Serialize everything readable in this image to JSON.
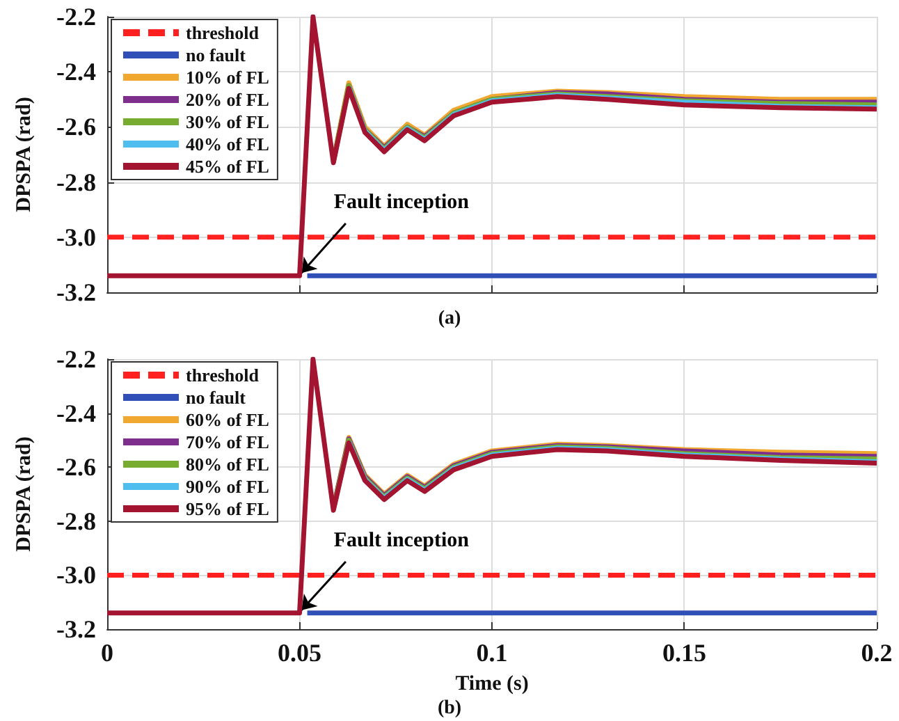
{
  "chart_data": [
    {
      "type": "line",
      "ylabel": "DPSPA (rad)",
      "annotations": [
        {
          "text": "Fault inception",
          "x": 0.05,
          "y": -3.14
        },
        "(a)"
      ],
      "xlim": [
        0,
        0.2
      ],
      "xticks": [
        0,
        0.05,
        0.1,
        0.15,
        0.2
      ],
      "ylim": [
        -3.2,
        -2.2
      ],
      "yticks": [
        -3.2,
        {
          "value": -3,
          "label": "-3.0"
        },
        -2.8,
        -2.6,
        -2.4,
        -2.2
      ],
      "grid": true,
      "legend": "top left",
      "marker": "none",
      "tick_labels": "y",
      "x": [
        0,
        0.05,
        0.0535,
        0.0588,
        0.0628,
        0.067,
        0.072,
        0.078,
        0.0825,
        0.09,
        0.1,
        0.117,
        0.13,
        0.15,
        0.175,
        0.2
      ],
      "series": [
        {
          "name": "threshold",
          "color": "#ff2020",
          "line_style": "dashed",
          "x": [
            0,
            0.2
          ],
          "values": [
            -3,
            -3
          ]
        },
        {
          "name": "no fault",
          "color": "#3050b8",
          "x": [
            0.052,
            0.2
          ],
          "values": [
            -3.14,
            -3.14
          ]
        },
        {
          "name": "10% of FL",
          "color": "#f0a830",
          "values": [
            null,
            null,
            null,
            -2.72,
            -2.44,
            -2.6,
            -2.67,
            -2.59,
            -2.63,
            -2.54,
            -2.49,
            -2.47,
            -2.475,
            -2.49,
            -2.5,
            -2.5
          ]
        },
        {
          "name": "20% of FL",
          "color": "#7e2f8e",
          "values": [
            null,
            null,
            null,
            -2.725,
            -2.45,
            -2.61,
            -2.675,
            -2.6,
            -2.635,
            -2.55,
            -2.5,
            -2.475,
            -2.48,
            -2.5,
            -2.51,
            -2.51
          ]
        },
        {
          "name": "30% of FL",
          "color": "#77ac30",
          "values": [
            null,
            null,
            null,
            -2.725,
            -2.45,
            -2.61,
            -2.68,
            -2.6,
            -2.64,
            -2.55,
            -2.5,
            -2.48,
            -2.49,
            -2.505,
            -2.515,
            -2.52
          ]
        },
        {
          "name": "40% of FL",
          "color": "#4dbeee",
          "values": [
            null,
            null,
            null,
            null,
            -2.455,
            -2.615,
            -2.685,
            -2.605,
            -2.645,
            -2.555,
            -2.505,
            -2.485,
            -2.495,
            -2.51,
            -2.525,
            -2.53
          ]
        },
        {
          "name": "45% of FL",
          "color": "#a2142f",
          "values": [
            -3.14,
            -3.14,
            -2.2,
            -2.73,
            -2.46,
            -2.62,
            -2.69,
            -2.61,
            -2.65,
            -2.56,
            -2.51,
            -2.49,
            -2.5,
            -2.52,
            -2.53,
            -2.535
          ]
        }
      ]
    },
    {
      "type": "line",
      "xlabel": "Time (s)",
      "ylabel": "DPSPA (rad)",
      "annotations": [
        {
          "text": "Fault inception",
          "x": 0.05,
          "y": -3.14
        },
        "(b)"
      ],
      "xlim": [
        0,
        0.2
      ],
      "xticks": [
        0,
        0.05,
        0.1,
        0.15,
        0.2
      ],
      "ylim": [
        -3.2,
        -2.2
      ],
      "yticks": [
        -3.2,
        {
          "value": -3,
          "label": "-3.0"
        },
        -2.8,
        -2.6,
        -2.4,
        -2.2
      ],
      "grid": true,
      "legend": "top left",
      "marker": "none",
      "x": [
        0,
        0.05,
        0.0535,
        0.0588,
        0.0628,
        0.067,
        0.072,
        0.078,
        0.0825,
        0.09,
        0.1,
        0.117,
        0.13,
        0.15,
        0.175,
        0.2
      ],
      "series": [
        {
          "name": "threshold",
          "color": "#ff2020",
          "line_style": "dashed",
          "x": [
            0,
            0.2
          ],
          "values": [
            -3,
            -3
          ]
        },
        {
          "name": "no fault",
          "color": "#3050b8",
          "x": [
            0.052,
            0.2
          ],
          "values": [
            -3.14,
            -3.14
          ]
        },
        {
          "name": "60% of FL",
          "color": "#f0a830",
          "values": [
            null,
            null,
            null,
            -2.75,
            -2.49,
            -2.63,
            -2.7,
            -2.63,
            -2.67,
            -2.59,
            -2.54,
            -2.515,
            -2.52,
            -2.535,
            -2.545,
            -2.55
          ]
        },
        {
          "name": "70% of FL",
          "color": "#7e2f8e",
          "values": [
            null,
            null,
            null,
            -2.75,
            -2.495,
            -2.635,
            -2.705,
            -2.635,
            -2.675,
            -2.595,
            -2.545,
            -2.52,
            -2.525,
            -2.54,
            -2.555,
            -2.56
          ]
        },
        {
          "name": "80% of FL",
          "color": "#77ac30",
          "values": [
            null,
            null,
            null,
            -2.755,
            -2.5,
            -2.64,
            -2.71,
            -2.64,
            -2.68,
            -2.6,
            -2.55,
            -2.525,
            -2.53,
            -2.55,
            -2.565,
            -2.57
          ]
        },
        {
          "name": "90% of FL",
          "color": "#4dbeee",
          "values": [
            null,
            null,
            null,
            null,
            -2.505,
            -2.645,
            -2.715,
            -2.645,
            -2.685,
            -2.605,
            -2.555,
            -2.53,
            -2.535,
            -2.555,
            -2.57,
            -2.58
          ]
        },
        {
          "name": "95% of FL",
          "color": "#a2142f",
          "values": [
            -3.14,
            -3.14,
            -2.2,
            -2.76,
            -2.51,
            -2.65,
            -2.72,
            -2.65,
            -2.69,
            -2.61,
            -2.56,
            -2.535,
            -2.54,
            -2.56,
            -2.575,
            -2.585
          ]
        }
      ]
    }
  ]
}
